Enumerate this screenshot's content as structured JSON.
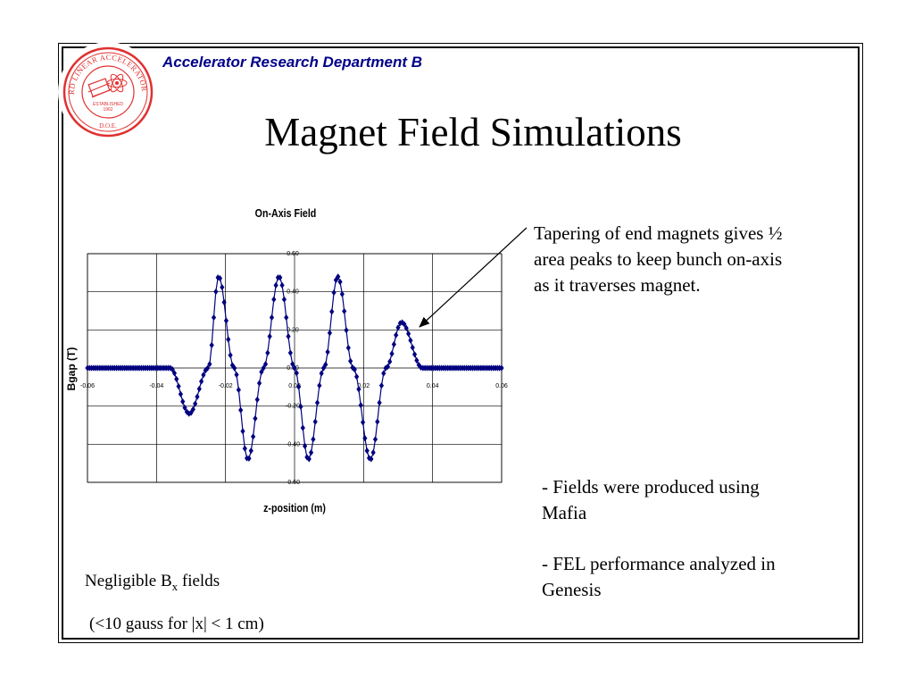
{
  "header": {
    "department": "Accelerator Research Department B",
    "logo_text_top": "STANFORD LINEAR ACCELERATOR CENTER",
    "logo_established": "ESTABLISHED",
    "logo_year": "1962",
    "logo_doe": "D.O.E."
  },
  "slide": {
    "title": "Magnet Field Simulations"
  },
  "annotation": {
    "text": "Tapering of end magnets gives ½ area peaks to keep bunch on-axis as it traverses magnet."
  },
  "bullets": [
    "-  Fields were produced using Mafia",
    "-  FEL performance analyzed in Genesis"
  ],
  "negligible": {
    "prefix": "Negligible B",
    "subscript": "x",
    "suffix": " fields",
    "detail": "(<10 gauss for |x| < 1 cm)"
  },
  "colors": {
    "series": "#000080",
    "department": "#000088",
    "logo": "#e03030"
  },
  "chart_data": {
    "type": "line",
    "title": "On-Axis Field",
    "xlabel": "z-position (m)",
    "ylabel": "Bgap (T)",
    "xlim": [
      -0.06,
      0.06
    ],
    "ylim": [
      -0.6,
      0.6
    ],
    "x_ticks": [
      -0.06,
      -0.04,
      -0.02,
      0.0,
      0.02,
      0.04,
      0.06
    ],
    "x_tick_labels": [
      "-0.06",
      "-0.04",
      "-0.02",
      "0.00",
      "0.02",
      "0.04",
      "0.06"
    ],
    "y_ticks": [
      0.6,
      0.4,
      0.2,
      0.0,
      -0.2,
      -0.4,
      -0.6
    ],
    "y_tick_labels": [
      "0.60",
      "0.40",
      "0.20",
      "0.00",
      "-0.20",
      "-0.40",
      "-0.60"
    ],
    "grid": true,
    "marker": "diamond",
    "key_points": [
      {
        "x": -0.06,
        "y": 0.0
      },
      {
        "x": -0.036,
        "y": 0.0
      },
      {
        "x": -0.0305,
        "y": -0.24
      },
      {
        "x": -0.025,
        "y": 0.0
      },
      {
        "x": -0.022,
        "y": 0.48
      },
      {
        "x": -0.0175,
        "y": 0.0
      },
      {
        "x": -0.0135,
        "y": -0.48
      },
      {
        "x": -0.009,
        "y": 0.0
      },
      {
        "x": -0.0045,
        "y": 0.48
      },
      {
        "x": 0.0,
        "y": 0.0
      },
      {
        "x": 0.004,
        "y": -0.48
      },
      {
        "x": 0.0085,
        "y": 0.0
      },
      {
        "x": 0.0125,
        "y": 0.48
      },
      {
        "x": 0.017,
        "y": 0.0
      },
      {
        "x": 0.022,
        "y": -0.48
      },
      {
        "x": 0.0265,
        "y": 0.0
      },
      {
        "x": 0.031,
        "y": 0.24
      },
      {
        "x": 0.037,
        "y": 0.0
      },
      {
        "x": 0.06,
        "y": 0.0
      }
    ]
  }
}
